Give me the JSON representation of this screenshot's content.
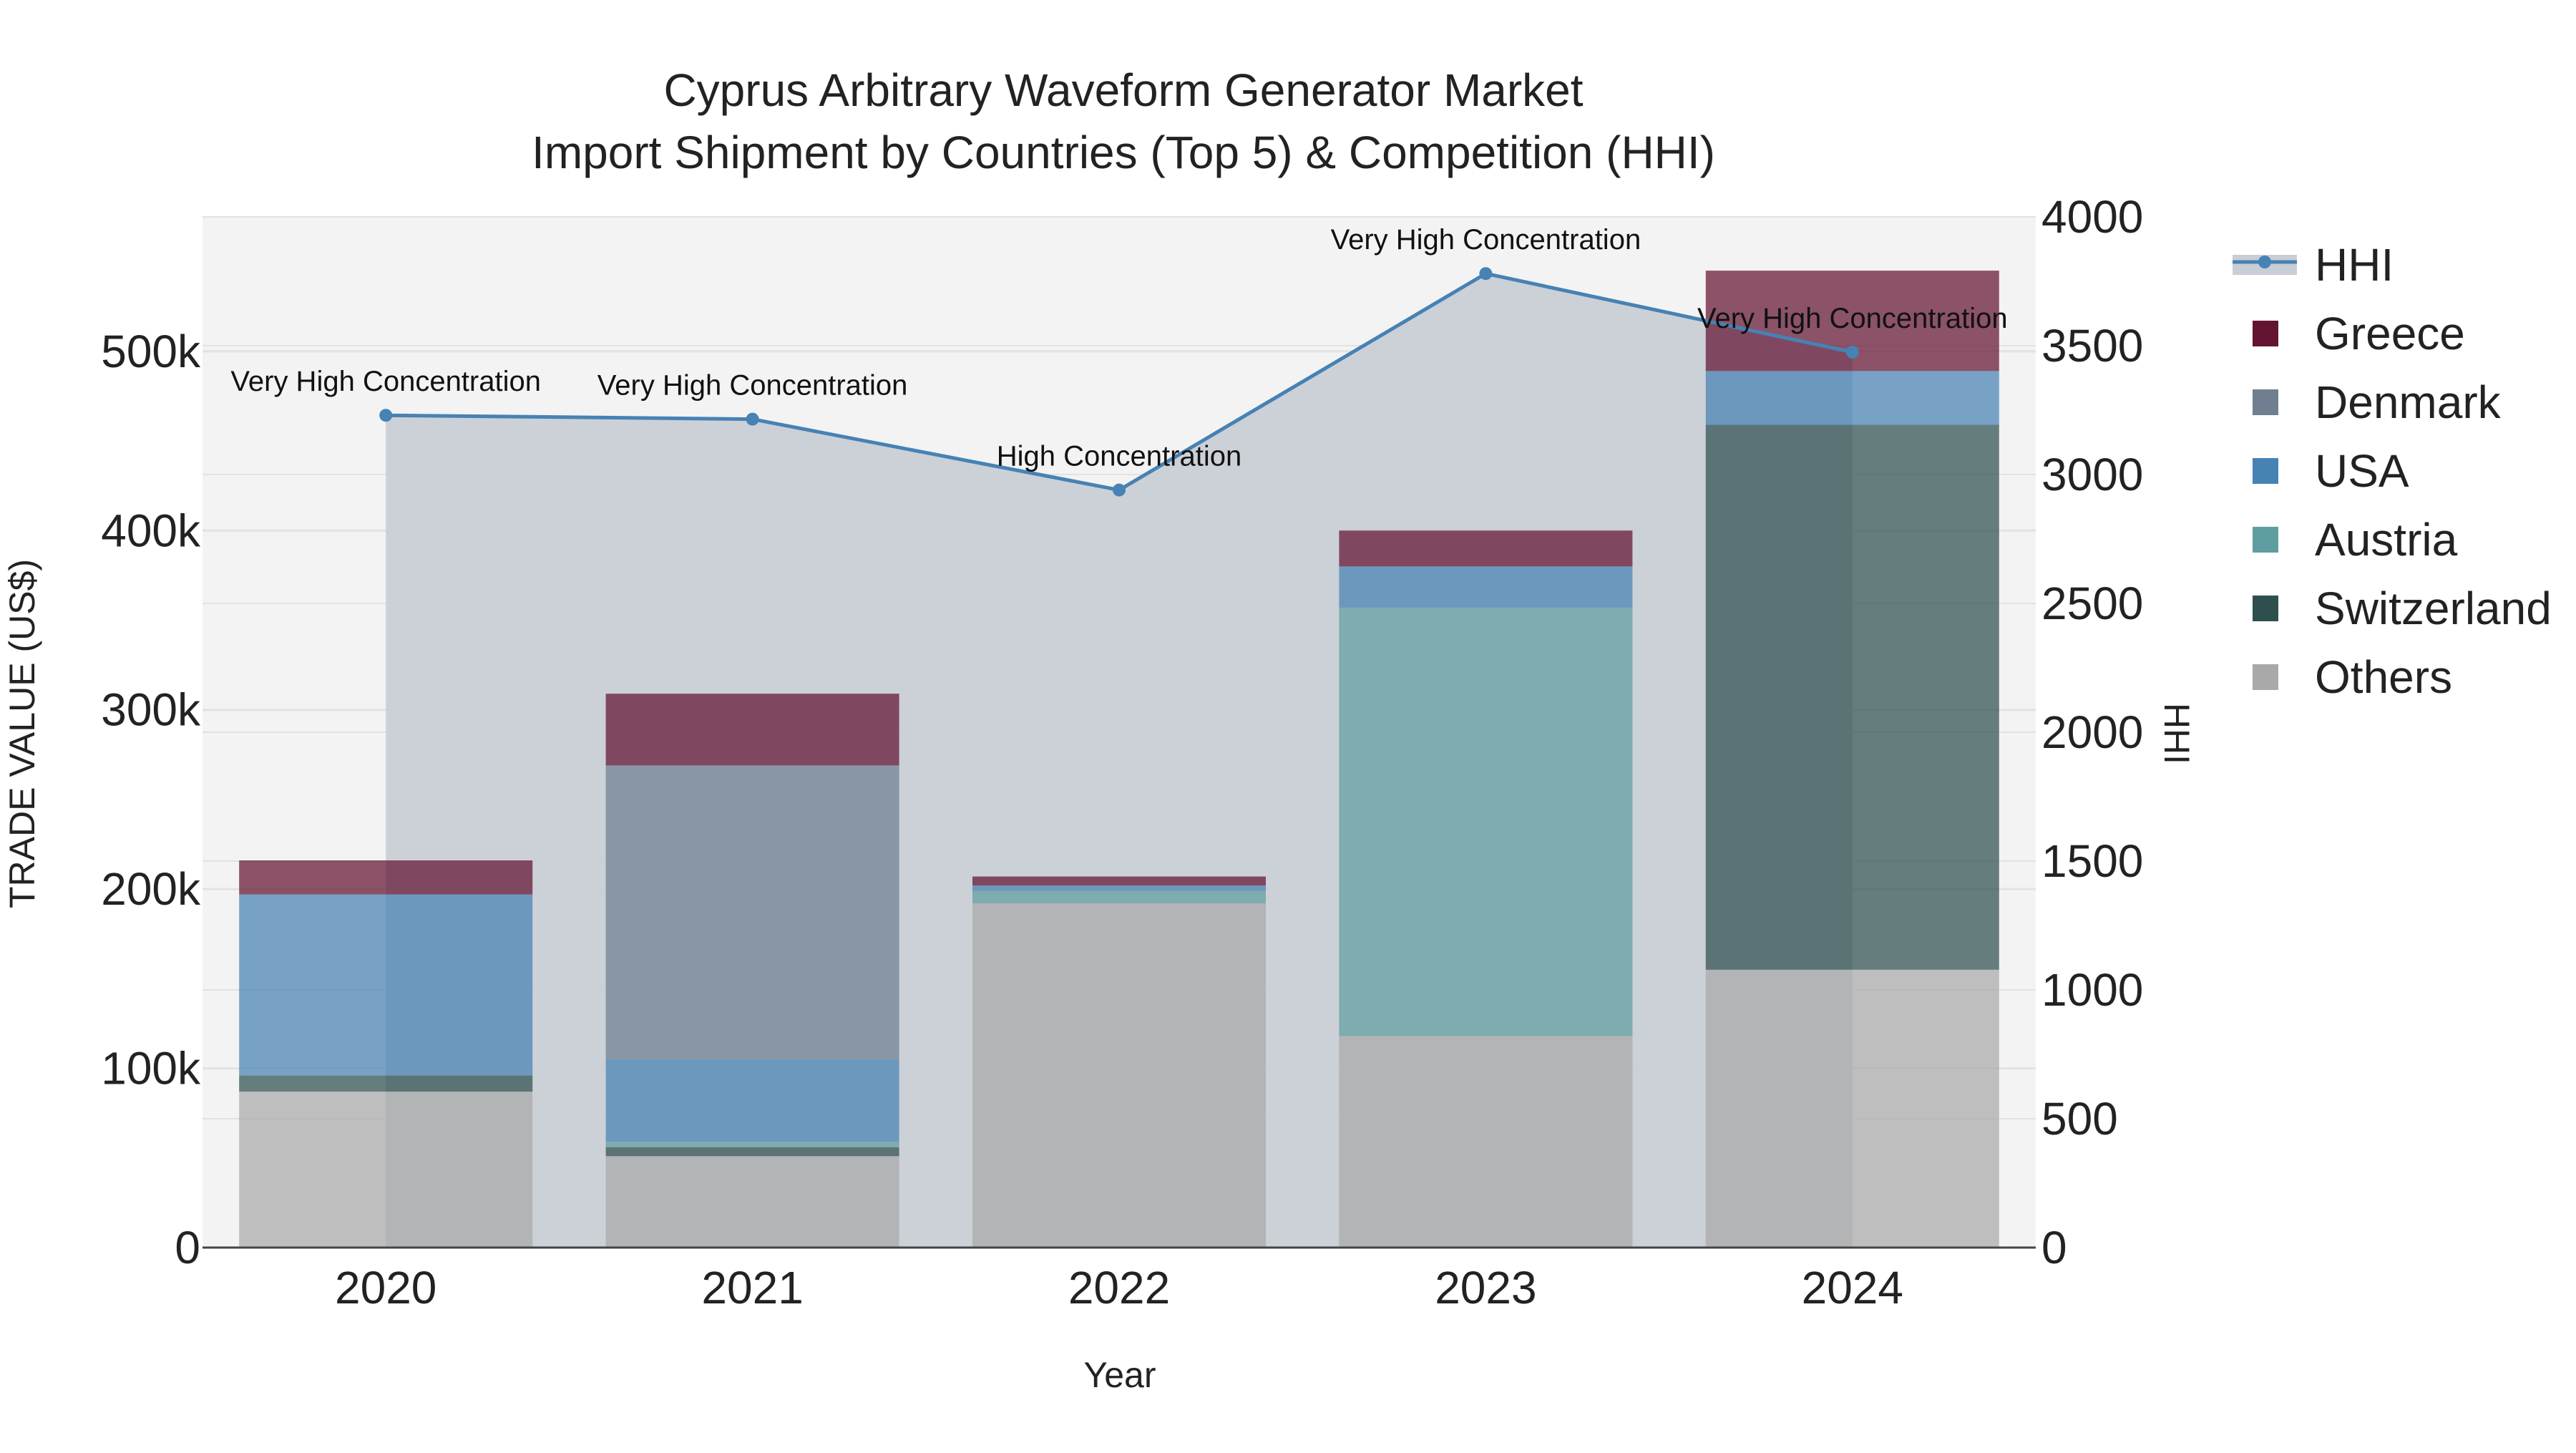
{
  "colors": {
    "background": "#ffffff",
    "plot_bg": "#f3f3f3",
    "grid": "#e2e2e2",
    "hhi_line": "#4682b4",
    "hhi_fill": "#c9cdd5",
    "Greece": "#631432",
    "Denmark": "#6f7f8f",
    "USA": "#4682b4",
    "Austria": "#5f9ea0",
    "Switzerland": "#2f4f4f",
    "Others": "#a9a9a9"
  },
  "chart_data": {
    "type": "bar",
    "barmode": "stack",
    "title_line1": "Cyprus Arbitrary Waveform Generator Market",
    "title_line2": "Import Shipment by Countries (Top 5) & Competition (HHI)",
    "xlabel": "Year",
    "ylabel": "TRADE VALUE (US$)",
    "y2label": "HHI",
    "categories": [
      "2020",
      "2021",
      "2022",
      "2023",
      "2024"
    ],
    "ylim": [
      0,
      575000
    ],
    "y_ticks": [
      0,
      100000,
      200000,
      300000,
      400000,
      500000
    ],
    "y_tick_labels": [
      "0",
      "100k",
      "200k",
      "300k",
      "400k",
      "500k"
    ],
    "y2lim": [
      0,
      4000
    ],
    "y2_ticks": [
      0,
      500,
      1000,
      1500,
      2000,
      2500,
      3000,
      3500,
      4000
    ],
    "y2_tick_labels": [
      "0",
      "500",
      "1000",
      "1500",
      "2000",
      "2500",
      "3000",
      "3500",
      "4000"
    ],
    "series": [
      {
        "name": "Others",
        "values": [
          87000,
          51000,
          192000,
          118000,
          155000
        ]
      },
      {
        "name": "Switzerland",
        "values": [
          9000,
          5000,
          0,
          0,
          304000
        ]
      },
      {
        "name": "Austria",
        "values": [
          0,
          3000,
          7000,
          239000,
          0
        ]
      },
      {
        "name": "USA",
        "values": [
          101000,
          46000,
          3000,
          23000,
          30000
        ]
      },
      {
        "name": "Denmark",
        "values": [
          0,
          164000,
          0,
          0,
          0
        ]
      },
      {
        "name": "Greece",
        "values": [
          19000,
          40000,
          5000,
          20000,
          56000
        ]
      }
    ],
    "hhi": {
      "name": "HHI",
      "values": [
        3230,
        3215,
        2940,
        3780,
        3475
      ],
      "labels": [
        "Very High Concentration",
        "Very High Concentration",
        "High Concentration",
        "Very High Concentration",
        "Very High Concentration"
      ]
    },
    "legend": [
      "HHI",
      "Greece",
      "Denmark",
      "USA",
      "Austria",
      "Switzerland",
      "Others"
    ],
    "legend_position": "right"
  }
}
